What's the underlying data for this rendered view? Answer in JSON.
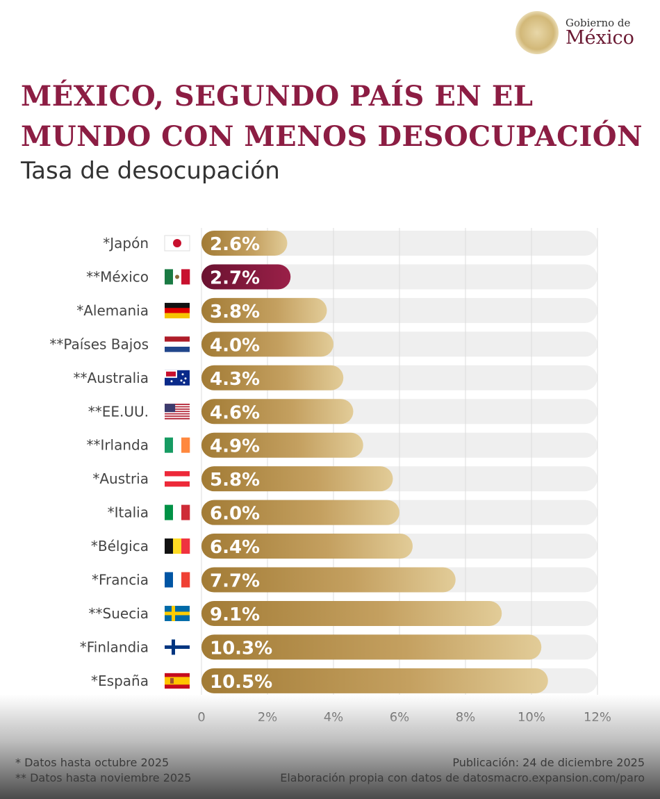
{
  "logo": {
    "line1": "Gobierno de",
    "line2": "México"
  },
  "title": [
    "MÉXICO, SEGUNDO PAÍS EN EL",
    "MUNDO CON MENOS DESOCUPACIÓN"
  ],
  "subtitle": "Tasa de desocupación",
  "chart_data": {
    "type": "bar",
    "orientation": "horizontal",
    "categories": [
      "*Japón",
      "**México",
      "*Alemania",
      "**Países Bajos",
      "**Australia",
      "**EE.UU.",
      "**Irlanda",
      "*Austria",
      "*Italia",
      "*Bélgica",
      "*Francia",
      "**Suecia",
      "*Finlandia",
      "*España"
    ],
    "flags": [
      "jp",
      "mx",
      "de",
      "nl",
      "au",
      "us",
      "ie",
      "at",
      "it",
      "be",
      "fr",
      "se",
      "fi",
      "es"
    ],
    "values": [
      2.6,
      2.7,
      3.8,
      4.0,
      4.3,
      4.6,
      4.9,
      5.8,
      6.0,
      6.4,
      7.7,
      9.1,
      10.3,
      10.5
    ],
    "data_labels": [
      "2.6%",
      "2.7%",
      "3.8%",
      "4.0%",
      "4.3%",
      "4.6%",
      "4.9%",
      "5.8%",
      "6.0%",
      "6.4%",
      "7.7%",
      "9.1%",
      "10.3%",
      "10.5%"
    ],
    "highlight": "**México",
    "xlim": [
      0,
      12
    ],
    "xticks": [
      0,
      2,
      4,
      6,
      8,
      10,
      12
    ],
    "xtick_labels": [
      "0",
      "2%",
      "4%",
      "6%",
      "8%",
      "10%",
      "12%"
    ],
    "grid": true,
    "colors": {
      "bar": "#b8924a",
      "highlight": "#7a1536",
      "track": "#efefef"
    }
  },
  "footer": {
    "note1": "* Datos hasta octubre 2025",
    "note2": "** Datos hasta noviembre 2025",
    "publication": "Publicación: 24 de diciembre 2025",
    "source": "Elaboración propia con datos de datosmacro.expansion.com/paro"
  }
}
